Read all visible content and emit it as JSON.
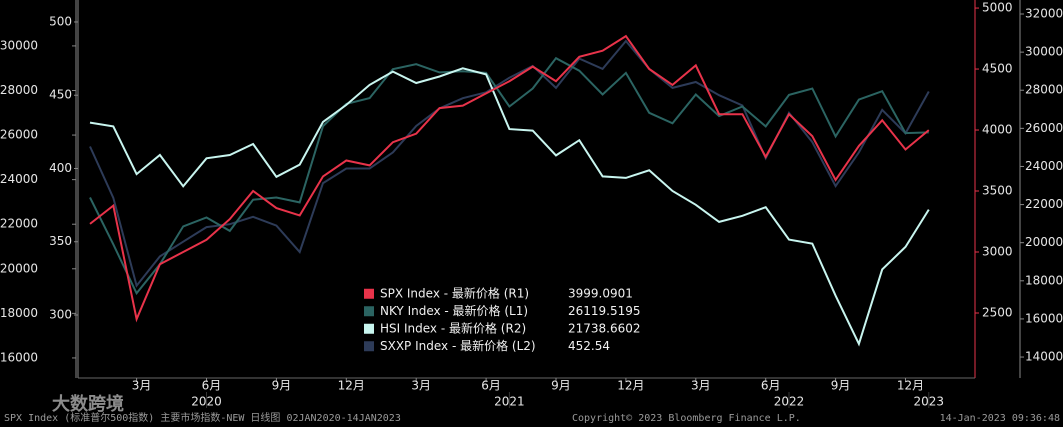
{
  "chart_data": {
    "type": "line",
    "x": [
      "2020-01",
      "2020-02",
      "2020-03",
      "2020-04",
      "2020-05",
      "2020-06",
      "2020-07",
      "2020-08",
      "2020-09",
      "2020-10",
      "2020-11",
      "2020-12",
      "2021-01",
      "2021-02",
      "2021-03",
      "2021-04",
      "2021-05",
      "2021-06",
      "2021-07",
      "2021-08",
      "2021-09",
      "2021-10",
      "2021-11",
      "2021-12",
      "2022-01",
      "2022-02",
      "2022-03",
      "2022-04",
      "2022-05",
      "2022-06",
      "2022-07",
      "2022-08",
      "2022-09",
      "2022-10",
      "2022-11",
      "2022-12",
      "2023-01"
    ],
    "series": [
      {
        "name": "SPX Index - 最新价格 (R1)",
        "color": "#e8334a",
        "axis": "y2",
        "values": [
          3230,
          3380,
          2450,
          2900,
          3000,
          3100,
          3270,
          3500,
          3360,
          3300,
          3620,
          3750,
          3710,
          3900,
          3970,
          4180,
          4200,
          4300,
          4400,
          4520,
          4400,
          4600,
          4650,
          4770,
          4500,
          4370,
          4530,
          4130,
          4130,
          3780,
          4130,
          3950,
          3590,
          3870,
          4080,
          3840,
          3999.0901
        ]
      },
      {
        "name": "NKY Index - 最新价格 (L1)",
        "color": "#2b6462",
        "axis": "y",
        "values": [
          23200,
          21100,
          18900,
          20200,
          21900,
          22300,
          21700,
          23100,
          23200,
          22980,
          26400,
          27400,
          27660,
          28960,
          29180,
          28810,
          28860,
          28790,
          27280,
          28090,
          29450,
          28890,
          27820,
          28790,
          27000,
          26530,
          27820,
          26850,
          27280,
          26390,
          27800,
          28090,
          25940,
          27590,
          27970,
          26090,
          26119.5195
        ]
      },
      {
        "name": "HSI Index - 最新价格 (R2)",
        "color": "#c8f5ef",
        "axis": "y4",
        "values": [
          26300,
          26100,
          23600,
          24600,
          22960,
          24430,
          24600,
          25180,
          23460,
          24100,
          26340,
          27230,
          28280,
          28980,
          28380,
          28720,
          29150,
          28830,
          25960,
          25880,
          24580,
          25380,
          23480,
          23400,
          23800,
          22710,
          21990,
          21090,
          21410,
          21860,
          20160,
          19950,
          17220,
          14690,
          18600,
          19780,
          21738.6602
        ]
      },
      {
        "name": "SXXP Index - 最新价格 (L2)",
        "color": "#2d3b58",
        "axis": "y3",
        "values": [
          415,
          380,
          320,
          340,
          350,
          360,
          362,
          367,
          361,
          343,
          390,
          400,
          400,
          411,
          429,
          441,
          448,
          452,
          462,
          470,
          455,
          475,
          468,
          487,
          468,
          455,
          459,
          450,
          443,
          407,
          438,
          418,
          388,
          411,
          440,
          424,
          452.54
        ]
      }
    ],
    "ylim": [
      15100,
      32060
    ],
    "yticks": [
      16000,
      18000,
      20000,
      22000,
      24000,
      26000,
      28000,
      30000
    ],
    "y3lim": [
      257,
      515
    ],
    "y3ticks": [
      300,
      350,
      400,
      450,
      500
    ],
    "y2lim": [
      1967,
      5066
    ],
    "y2ticks": [
      2500,
      3000,
      3500,
      4000,
      4500,
      5000
    ],
    "y4lim": [
      12900,
      32735
    ],
    "y4ticks": [
      14000,
      16000,
      18000,
      20000,
      22000,
      24000,
      26000,
      28000,
      30000,
      32000
    ],
    "xticks": [
      {
        "value": "2020-03",
        "label": "3月"
      },
      {
        "value": "2020-06",
        "label": "6月"
      },
      {
        "value": "2020-09",
        "label": "9月"
      },
      {
        "value": "2020-12",
        "label": "12月"
      },
      {
        "value": "2021-03",
        "label": "3月"
      },
      {
        "value": "2021-06",
        "label": "6月"
      },
      {
        "value": "2021-09",
        "label": "9月"
      },
      {
        "value": "2021-12",
        "label": "12月"
      },
      {
        "value": "2022-03",
        "label": "3月"
      },
      {
        "value": "2022-06",
        "label": "6月"
      },
      {
        "value": "2022-09",
        "label": "9月"
      },
      {
        "value": "2022-12",
        "label": "12月"
      }
    ],
    "year_labels": [
      {
        "value": "2020-06",
        "label": "2020"
      },
      {
        "value": "2021-07",
        "label": "2021"
      },
      {
        "value": "2022-07",
        "label": "2022"
      },
      {
        "value": "2023-01",
        "label": "2023"
      }
    ],
    "source_note": "SPX Index (标准普尔500指数) 主要市场指数-NEW  日线图 02JAN2020-14JAN2023",
    "copyright": "Copyright© 2023 Bloomberg Finance L.P.",
    "timestamp": "14-Jan-2023 09:36:48",
    "watermark": "大数跨境"
  }
}
